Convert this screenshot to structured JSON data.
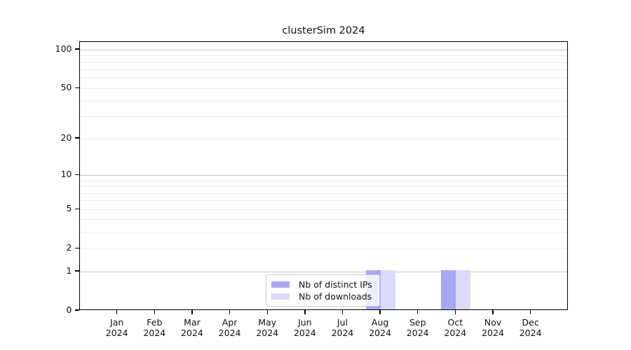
{
  "figure": {
    "title": "clusterSim 2024"
  },
  "chart_data": {
    "type": "bar",
    "title": "clusterSim 2024",
    "x_months": [
      "Jan",
      "Feb",
      "Mar",
      "Apr",
      "May",
      "Jun",
      "Jul",
      "Aug",
      "Sep",
      "Oct",
      "Nov",
      "Dec"
    ],
    "x_year": "2024",
    "series": [
      {
        "name": "Nb of distinct IPs",
        "color": "#a8a8f3",
        "values": [
          0,
          0,
          0,
          0,
          0,
          0,
          0,
          1,
          0,
          1,
          0,
          0
        ]
      },
      {
        "name": "Nb of downloads",
        "color": "#dbdbf8",
        "values": [
          0,
          0,
          0,
          0,
          0,
          0,
          0,
          1,
          0,
          1,
          0,
          0
        ]
      }
    ],
    "yscale": "log1p",
    "ylim": [
      0,
      116
    ],
    "yticks": [
      0,
      1,
      2,
      5,
      10,
      20,
      50,
      100
    ],
    "grid_values": [
      1,
      2,
      3,
      4,
      5,
      6,
      7,
      8,
      9,
      10,
      20,
      30,
      40,
      50,
      60,
      70,
      80,
      90,
      100
    ],
    "grid_emphasis_values": [
      1,
      10,
      100
    ],
    "legend_location": "inside-bottom-center",
    "grid": true
  },
  "colors": {
    "background": "#ffffff",
    "axis": "#000000",
    "text": "#111111",
    "grid_major": "#c6c6c6",
    "grid_minor": "#efefef",
    "legend_border": "#cccccc"
  }
}
